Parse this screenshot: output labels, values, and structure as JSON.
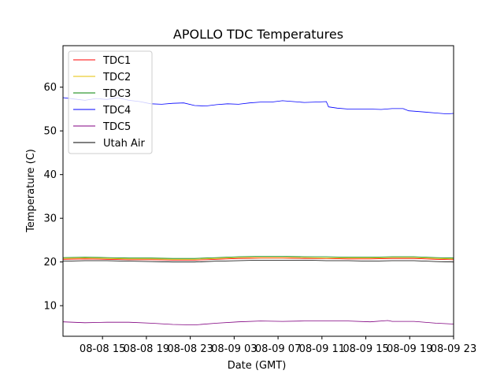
{
  "chart_data": {
    "type": "line",
    "title": "APOLLO TDC Temperatures",
    "xlabel": "Date (GMT)",
    "ylabel": "Temperature (C)",
    "xlim": [
      0,
      35.6
    ],
    "ylim": [
      3,
      69.5
    ],
    "x_ticks": [
      {
        "x": 3.6,
        "label": "08-08 15"
      },
      {
        "x": 7.6,
        "label": "08-08 19"
      },
      {
        "x": 11.6,
        "label": "08-08 23"
      },
      {
        "x": 15.6,
        "label": "08-09 03"
      },
      {
        "x": 19.6,
        "label": "08-09 07"
      },
      {
        "x": 23.6,
        "label": "08-09 11"
      },
      {
        "x": 27.6,
        "label": "08-09 15"
      },
      {
        "x": 31.6,
        "label": "08-09 19"
      },
      {
        "x": 35.6,
        "label": "08-09 23"
      }
    ],
    "y_ticks": [
      10,
      20,
      30,
      40,
      50,
      60
    ],
    "legend_position": "top-left",
    "series": [
      {
        "name": "TDC1",
        "color": "#ff0000",
        "x": [
          0,
          2,
          4,
          6,
          8,
          10,
          12,
          14,
          16,
          18,
          20,
          22,
          24,
          26,
          28,
          30,
          32,
          34,
          35.6
        ],
        "values": [
          20.6,
          20.7,
          20.6,
          20.5,
          20.5,
          20.4,
          20.4,
          20.6,
          20.8,
          20.9,
          20.9,
          20.8,
          20.8,
          20.7,
          20.7,
          20.8,
          20.8,
          20.6,
          20.5
        ]
      },
      {
        "name": "TDC2",
        "color": "#e5c000",
        "x": [
          0,
          2,
          4,
          6,
          8,
          10,
          12,
          14,
          16,
          18,
          20,
          22,
          24,
          26,
          28,
          30,
          32,
          34,
          35.6
        ],
        "values": [
          20.8,
          20.9,
          20.8,
          20.7,
          20.7,
          20.6,
          20.6,
          20.8,
          21.0,
          21.0,
          21.0,
          21.0,
          20.9,
          20.9,
          20.9,
          21.0,
          21.0,
          20.8,
          20.7
        ]
      },
      {
        "name": "TDC3",
        "color": "#008000",
        "x": [
          0,
          2,
          4,
          6,
          8,
          10,
          12,
          14,
          16,
          18,
          20,
          22,
          24,
          26,
          28,
          30,
          32,
          34,
          35.6
        ],
        "values": [
          21.0,
          21.1,
          21.0,
          20.9,
          20.9,
          20.8,
          20.8,
          21.0,
          21.2,
          21.3,
          21.3,
          21.2,
          21.2,
          21.1,
          21.1,
          21.2,
          21.2,
          21.0,
          20.9
        ]
      },
      {
        "name": "TDC4",
        "color": "#0000ff",
        "x": [
          0,
          1,
          2,
          3,
          4,
          5,
          6,
          7,
          8,
          9,
          10,
          11,
          12,
          13,
          14,
          15,
          16,
          17,
          18,
          19,
          20,
          21,
          22,
          23,
          24,
          24.2,
          25,
          26,
          27,
          28,
          29,
          30,
          31,
          31.5,
          32,
          33,
          34,
          35,
          35.6
        ],
        "values": [
          57.6,
          57.3,
          57.0,
          57.4,
          57.2,
          57.6,
          57.0,
          56.7,
          56.2,
          56.1,
          56.3,
          56.4,
          55.8,
          55.7,
          56.0,
          56.2,
          56.1,
          56.4,
          56.6,
          56.6,
          56.9,
          56.7,
          56.5,
          56.6,
          56.7,
          55.5,
          55.2,
          55.0,
          55.0,
          55.0,
          54.9,
          55.1,
          55.1,
          54.6,
          54.5,
          54.3,
          54.1,
          53.9,
          54.0
        ]
      },
      {
        "name": "TDC5",
        "color": "#800080",
        "x": [
          0,
          2,
          4,
          6,
          8,
          10,
          12,
          14,
          16,
          18,
          20,
          22,
          24,
          26,
          28,
          29.6,
          30,
          32,
          34,
          35.6
        ],
        "values": [
          6.3,
          6.1,
          6.2,
          6.2,
          6.0,
          5.7,
          5.6,
          6.0,
          6.3,
          6.5,
          6.4,
          6.5,
          6.5,
          6.5,
          6.3,
          6.6,
          6.4,
          6.4,
          6.0,
          5.8
        ]
      },
      {
        "name": "Utah Air",
        "color": "#000000",
        "x": [
          0,
          2,
          4,
          6,
          8,
          10,
          12,
          14,
          16,
          18,
          20,
          22,
          24,
          26,
          28,
          30,
          32,
          34,
          35.6
        ],
        "values": [
          20.2,
          20.3,
          20.3,
          20.2,
          20.1,
          20.0,
          20.0,
          20.2,
          20.3,
          20.4,
          20.4,
          20.4,
          20.3,
          20.3,
          20.2,
          20.3,
          20.3,
          20.1,
          20.0
        ]
      }
    ]
  }
}
